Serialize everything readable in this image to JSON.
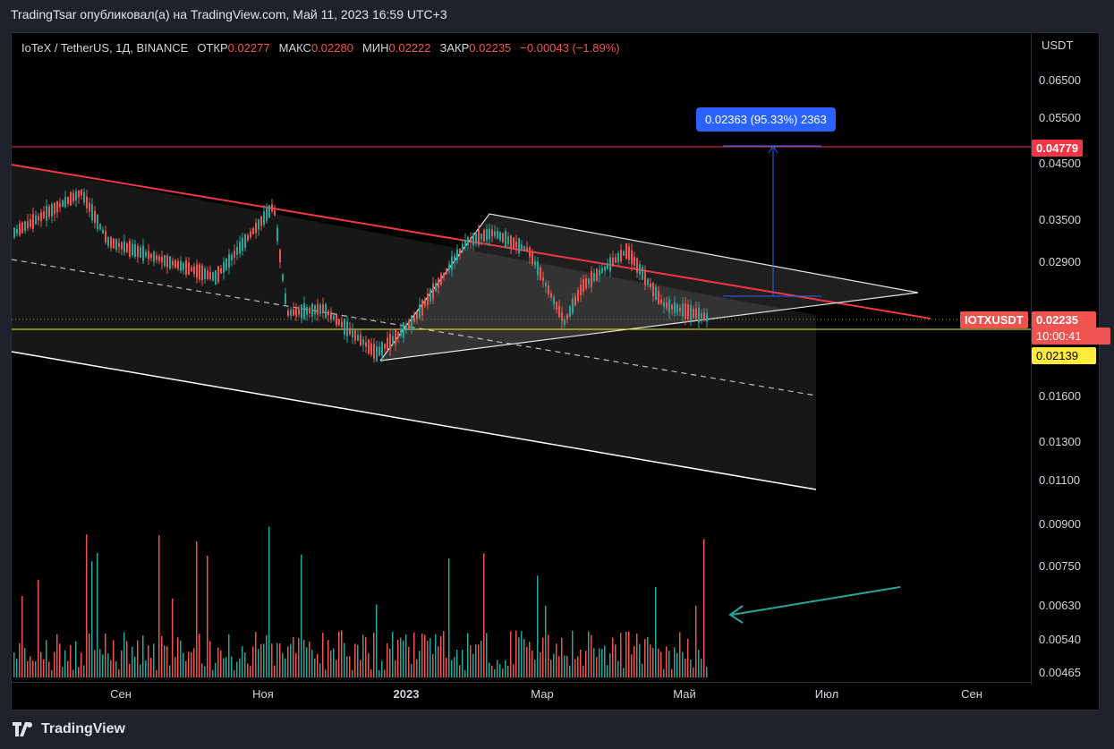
{
  "header": {
    "publish_line": "TradingTsar опубликовал(а) на TradingView.com, Май 11, 2023 16:59 UTC+3"
  },
  "legend": {
    "symbol_desc": "IoTeX / TetherUS, 1Д, BINANCE",
    "open_label": "ОТКР",
    "open_value": "0.02277",
    "high_label": "МАКС",
    "high_value": "0.02280",
    "low_label": "МИН",
    "low_value": "0.02222",
    "close_label": "ЗАКР",
    "close_value": "0.02235",
    "change_value": "−0.00043 (−1.89%)"
  },
  "price_axis": {
    "currency": "USDT",
    "ticks": [
      "0.06500",
      "0.05500",
      "0.04500",
      "0.03500",
      "0.02900",
      "0.01600",
      "0.01300",
      "0.01100",
      "0.00900",
      "0.00750",
      "0.00630",
      "0.00540",
      "0.00465"
    ]
  },
  "time_axis": {
    "ticks": [
      "Сен",
      "Ноя",
      "2023",
      "Мар",
      "Май",
      "Июл",
      "Сен"
    ]
  },
  "badges": {
    "resistance_price": "0.04779",
    "symbol": "IOTXUSDT",
    "last_price": "0.02235",
    "countdown": "10:00:41",
    "support_price": "0.02139"
  },
  "measure": {
    "label": "0.02363 (95.33%) 2363"
  },
  "footer": {
    "brand": "TradingView"
  },
  "colors": {
    "resistance": "#f23645",
    "support": "#ffeb3b",
    "measure": "#2962ff",
    "arrow": "#26a69a",
    "up": "#26a69a",
    "down": "#ef5350"
  },
  "icons": {
    "footer_logo": "tradingview-logo-icon"
  }
}
